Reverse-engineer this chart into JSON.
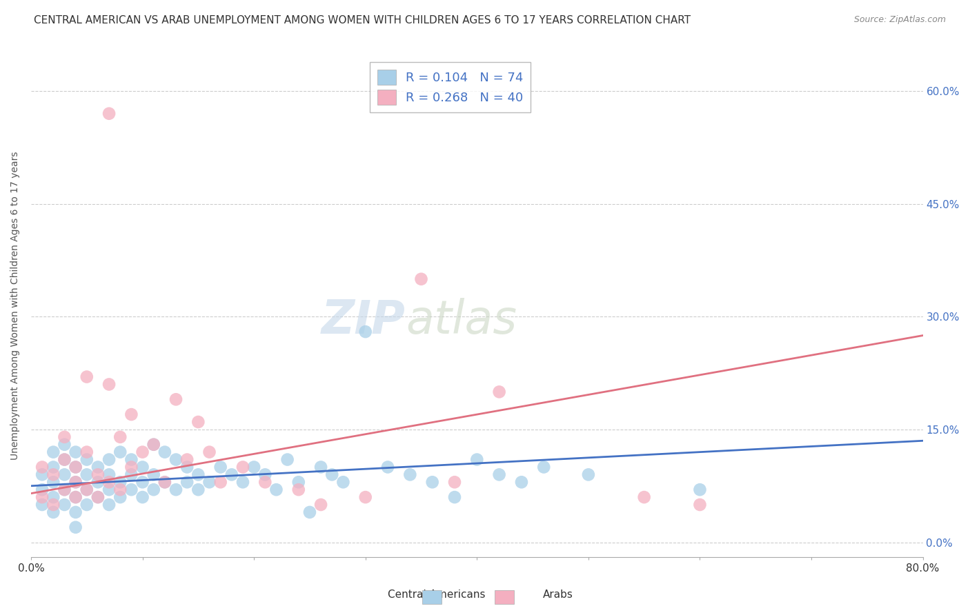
{
  "title": "CENTRAL AMERICAN VS ARAB UNEMPLOYMENT AMONG WOMEN WITH CHILDREN AGES 6 TO 17 YEARS CORRELATION CHART",
  "source": "Source: ZipAtlas.com",
  "ylabel": "Unemployment Among Women with Children Ages 6 to 17 years",
  "xlim": [
    0.0,
    0.8
  ],
  "ylim": [
    -0.02,
    0.65
  ],
  "yticks": [
    0.0,
    0.15,
    0.3,
    0.45,
    0.6
  ],
  "ytick_labels": [
    "0.0%",
    "15.0%",
    "30.0%",
    "45.0%",
    "60.0%"
  ],
  "xticks": [
    0.0,
    0.1,
    0.2,
    0.3,
    0.4,
    0.5,
    0.6,
    0.7,
    0.8
  ],
  "xtick_end_labels": [
    "0.0%",
    "80.0%"
  ],
  "legend_line1": "R = 0.104   N = 74",
  "legend_line2": "R = 0.268   N = 40",
  "blue_color": "#a8cfe8",
  "pink_color": "#f4afc0",
  "blue_line_color": "#4472c4",
  "pink_line_color": "#e07080",
  "right_label_color": "#4472c4",
  "watermark_zip": "ZIP",
  "watermark_atlas": "atlas",
  "blue_points_x": [
    0.01,
    0.01,
    0.01,
    0.02,
    0.02,
    0.02,
    0.02,
    0.02,
    0.03,
    0.03,
    0.03,
    0.03,
    0.03,
    0.04,
    0.04,
    0.04,
    0.04,
    0.04,
    0.04,
    0.05,
    0.05,
    0.05,
    0.05,
    0.06,
    0.06,
    0.06,
    0.07,
    0.07,
    0.07,
    0.07,
    0.08,
    0.08,
    0.08,
    0.09,
    0.09,
    0.09,
    0.1,
    0.1,
    0.1,
    0.11,
    0.11,
    0.11,
    0.12,
    0.12,
    0.13,
    0.13,
    0.14,
    0.14,
    0.15,
    0.15,
    0.16,
    0.17,
    0.18,
    0.19,
    0.2,
    0.21,
    0.22,
    0.23,
    0.24,
    0.25,
    0.26,
    0.27,
    0.28,
    0.3,
    0.32,
    0.34,
    0.36,
    0.38,
    0.4,
    0.42,
    0.44,
    0.46,
    0.5,
    0.6
  ],
  "blue_points_y": [
    0.05,
    0.07,
    0.09,
    0.04,
    0.06,
    0.08,
    0.1,
    0.12,
    0.05,
    0.07,
    0.09,
    0.11,
    0.13,
    0.04,
    0.06,
    0.08,
    0.1,
    0.12,
    0.02,
    0.05,
    0.07,
    0.09,
    0.11,
    0.06,
    0.08,
    0.1,
    0.05,
    0.07,
    0.09,
    0.11,
    0.06,
    0.08,
    0.12,
    0.07,
    0.09,
    0.11,
    0.06,
    0.08,
    0.1,
    0.07,
    0.09,
    0.13,
    0.08,
    0.12,
    0.07,
    0.11,
    0.08,
    0.1,
    0.07,
    0.09,
    0.08,
    0.1,
    0.09,
    0.08,
    0.1,
    0.09,
    0.07,
    0.11,
    0.08,
    0.04,
    0.1,
    0.09,
    0.08,
    0.28,
    0.1,
    0.09,
    0.08,
    0.06,
    0.11,
    0.09,
    0.08,
    0.1,
    0.09,
    0.07
  ],
  "pink_points_x": [
    0.01,
    0.01,
    0.02,
    0.02,
    0.03,
    0.03,
    0.03,
    0.04,
    0.04,
    0.04,
    0.05,
    0.05,
    0.05,
    0.06,
    0.06,
    0.07,
    0.07,
    0.07,
    0.08,
    0.08,
    0.09,
    0.09,
    0.1,
    0.11,
    0.12,
    0.13,
    0.14,
    0.15,
    0.16,
    0.17,
    0.19,
    0.21,
    0.24,
    0.26,
    0.3,
    0.35,
    0.38,
    0.42,
    0.55,
    0.6
  ],
  "pink_points_y": [
    0.06,
    0.1,
    0.05,
    0.09,
    0.07,
    0.11,
    0.14,
    0.06,
    0.1,
    0.08,
    0.07,
    0.12,
    0.22,
    0.06,
    0.09,
    0.57,
    0.08,
    0.21,
    0.07,
    0.14,
    0.1,
    0.17,
    0.12,
    0.13,
    0.08,
    0.19,
    0.11,
    0.16,
    0.12,
    0.08,
    0.1,
    0.08,
    0.07,
    0.05,
    0.06,
    0.35,
    0.08,
    0.2,
    0.06,
    0.05
  ],
  "blue_trend_x": [
    0.0,
    0.8
  ],
  "blue_trend_y": [
    0.075,
    0.135
  ],
  "pink_trend_x": [
    0.0,
    0.8
  ],
  "pink_trend_y": [
    0.065,
    0.275
  ],
  "background_color": "#ffffff",
  "grid_color": "#cccccc",
  "title_fontsize": 11,
  "source_fontsize": 9,
  "legend_fontsize": 13,
  "watermark_fontsize": 48,
  "ylabel_fontsize": 10
}
